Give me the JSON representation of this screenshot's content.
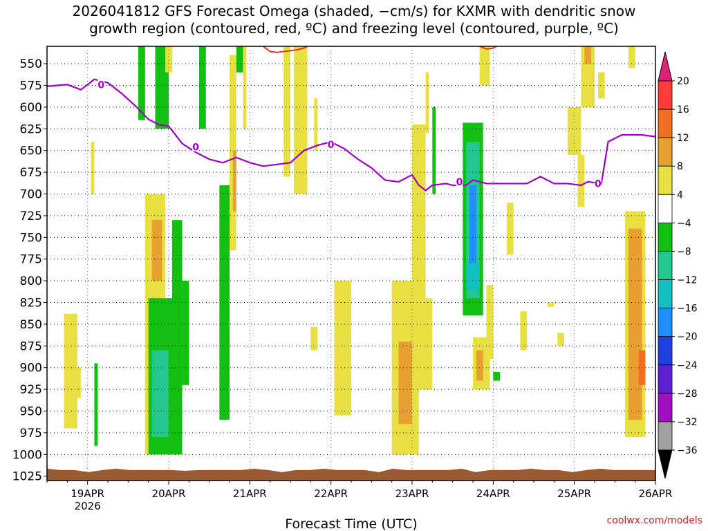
{
  "title_line1": "2026041812 GFS Forecast Omega (shaded, −cm/s) for KXMR with dendritic snow",
  "title_line2": "growth region (contoured, red, ºC) and freezing level (contoured, purple, ºC)",
  "credit": "coolwx.com/models",
  "chart_data": {
    "type": "heatmap",
    "xlabel": "Forecast Time (UTC)",
    "ylabel": "",
    "x_ticks": [
      {
        "label": "19APR",
        "sublabel": "2026",
        "hours": 12
      },
      {
        "label": "20APR",
        "sublabel": "",
        "hours": 36
      },
      {
        "label": "21APR",
        "sublabel": "",
        "hours": 60
      },
      {
        "label": "22APR",
        "sublabel": "",
        "hours": 84
      },
      {
        "label": "23APR",
        "sublabel": "",
        "hours": 108
      },
      {
        "label": "24APR",
        "sublabel": "",
        "hours": 132
      },
      {
        "label": "25APR",
        "sublabel": "",
        "hours": 156
      },
      {
        "label": "26APR",
        "sublabel": "",
        "hours": 180
      }
    ],
    "x_range_hours": [
      0,
      180
    ],
    "y_ticks": [
      550,
      575,
      600,
      625,
      650,
      675,
      700,
      725,
      750,
      775,
      800,
      825,
      850,
      875,
      900,
      925,
      950,
      975,
      1000,
      1025
    ],
    "y_range_hpa": [
      530,
      1030
    ],
    "grid": true,
    "colorbar": {
      "labels": [
        "20",
        "16",
        "12",
        "8",
        "4",
        "−4",
        "−8",
        "−12",
        "−16",
        "−20",
        "−24",
        "−28",
        "−32",
        "−36"
      ],
      "colors": [
        "#ff3b3b",
        "#f07020",
        "#e8a030",
        "#e8e040",
        "#ffffff",
        "#11c011",
        "#22c890",
        "#11c0c0",
        "#2090ff",
        "#2040e0",
        "#6020d0",
        "#a010c0",
        "#a0a0a0"
      ],
      "top_arrow_color": "#e0207a",
      "bottom_arrow_color": "#000000"
    },
    "freezing_level": {
      "label": "0",
      "color": "#a000c8",
      "points": [
        [
          0,
          576
        ],
        [
          6,
          574
        ],
        [
          10,
          580
        ],
        [
          14,
          568
        ],
        [
          18,
          572
        ],
        [
          22,
          584
        ],
        [
          26,
          598
        ],
        [
          30,
          614
        ],
        [
          33,
          620
        ],
        [
          36,
          622
        ],
        [
          38,
          632
        ],
        [
          40,
          642
        ],
        [
          44,
          652
        ],
        [
          48,
          660
        ],
        [
          52,
          664
        ],
        [
          56,
          658
        ],
        [
          60,
          664
        ],
        [
          64,
          668
        ],
        [
          68,
          666
        ],
        [
          72,
          664
        ],
        [
          76,
          650
        ],
        [
          80,
          644
        ],
        [
          84,
          640
        ],
        [
          88,
          648
        ],
        [
          92,
          660
        ],
        [
          96,
          670
        ],
        [
          100,
          684
        ],
        [
          104,
          686
        ],
        [
          108,
          678
        ],
        [
          110,
          690
        ],
        [
          112,
          696
        ],
        [
          114,
          690
        ],
        [
          118,
          688
        ],
        [
          120,
          690
        ],
        [
          124,
          690
        ],
        [
          126,
          684
        ],
        [
          130,
          688
        ],
        [
          134,
          688
        ],
        [
          138,
          688
        ],
        [
          142,
          688
        ],
        [
          146,
          680
        ],
        [
          150,
          688
        ],
        [
          154,
          688
        ],
        [
          158,
          690
        ],
        [
          160,
          686
        ],
        [
          164,
          688
        ],
        [
          166,
          640
        ],
        [
          170,
          632
        ],
        [
          176,
          632
        ],
        [
          180,
          634
        ]
      ],
      "label_positions": [
        [
          16,
          574
        ],
        [
          44,
          646
        ],
        [
          84,
          643
        ],
        [
          122,
          686
        ],
        [
          163,
          688
        ]
      ]
    },
    "dendritic_region": {
      "label": "",
      "color": "#e83030",
      "segments": [
        [
          [
            64,
            530
          ],
          [
            66,
            536
          ],
          [
            68,
            537
          ],
          [
            74,
            534
          ],
          [
            76,
            532
          ],
          [
            77,
            530
          ]
        ],
        [
          [
            128,
            530
          ],
          [
            130,
            533
          ],
          [
            132,
            532
          ],
          [
            133,
            530
          ]
        ]
      ]
    },
    "ground": {
      "color": "#9a5a32",
      "pressure_hpa": 1018
    },
    "shaded_regions": [
      {
        "t1": 5,
        "t2": 9,
        "p1": 838,
        "p2": 970,
        "color": "#e8e040"
      },
      {
        "t1": 9,
        "t2": 10,
        "p1": 900,
        "p2": 935,
        "color": "#e8e040"
      },
      {
        "t1": 13,
        "t2": 14,
        "p1": 640,
        "p2": 700,
        "color": "#e8e040"
      },
      {
        "t1": 14,
        "t2": 15,
        "p1": 895,
        "p2": 990,
        "color": "#11c011"
      },
      {
        "t1": 27,
        "t2": 29,
        "p1": 530,
        "p2": 615,
        "color": "#11c011"
      },
      {
        "t1": 29,
        "t2": 35,
        "p1": 700,
        "p2": 1000,
        "color": "#e8e040"
      },
      {
        "t1": 31,
        "t2": 34,
        "p1": 730,
        "p2": 800,
        "color": "#e8a030"
      },
      {
        "t1": 32,
        "t2": 36,
        "p1": 530,
        "p2": 625,
        "color": "#11c011"
      },
      {
        "t1": 35,
        "t2": 37,
        "p1": 530,
        "p2": 560,
        "color": "#e8e040"
      },
      {
        "t1": 30,
        "t2": 38,
        "p1": 820,
        "p2": 1000,
        "color": "#11c011"
      },
      {
        "t1": 31,
        "t2": 36,
        "p1": 880,
        "p2": 980,
        "color": "#22c890"
      },
      {
        "t1": 37,
        "t2": 40,
        "p1": 730,
        "p2": 1000,
        "color": "#11c011"
      },
      {
        "t1": 40,
        "t2": 42,
        "p1": 800,
        "p2": 920,
        "color": "#11c011"
      },
      {
        "t1": 45,
        "t2": 47,
        "p1": 530,
        "p2": 625,
        "color": "#11c011"
      },
      {
        "t1": 51,
        "t2": 54,
        "p1": 690,
        "p2": 960,
        "color": "#11c011"
      },
      {
        "t1": 54,
        "t2": 56,
        "p1": 540,
        "p2": 765,
        "color": "#e8e040"
      },
      {
        "t1": 55,
        "t2": 56,
        "p1": 650,
        "p2": 720,
        "color": "#e8a030"
      },
      {
        "t1": 56,
        "t2": 58,
        "p1": 530,
        "p2": 560,
        "color": "#11c011"
      },
      {
        "t1": 58,
        "t2": 59,
        "p1": 530,
        "p2": 625,
        "color": "#e8e040"
      },
      {
        "t1": 70,
        "t2": 72,
        "p1": 530,
        "p2": 680,
        "color": "#e8e040"
      },
      {
        "t1": 73,
        "t2": 77,
        "p1": 530,
        "p2": 700,
        "color": "#e8e040"
      },
      {
        "t1": 79,
        "t2": 80,
        "p1": 590,
        "p2": 650,
        "color": "#e8e040"
      },
      {
        "t1": 78,
        "t2": 80,
        "p1": 853,
        "p2": 880,
        "color": "#e8e040"
      },
      {
        "t1": 85,
        "t2": 90,
        "p1": 800,
        "p2": 955,
        "color": "#e8e040"
      },
      {
        "t1": 102,
        "t2": 110,
        "p1": 800,
        "p2": 1000,
        "color": "#e8e040"
      },
      {
        "t1": 104,
        "t2": 108,
        "p1": 870,
        "p2": 965,
        "color": "#e8a030"
      },
      {
        "t1": 108,
        "t2": 112,
        "p1": 620,
        "p2": 820,
        "color": "#e8e040"
      },
      {
        "t1": 110,
        "t2": 114,
        "p1": 820,
        "p2": 925,
        "color": "#e8e040"
      },
      {
        "t1": 112,
        "t2": 113,
        "p1": 560,
        "p2": 630,
        "color": "#e8e040"
      },
      {
        "t1": 114,
        "t2": 115,
        "p1": 600,
        "p2": 700,
        "color": "#11c011"
      },
      {
        "t1": 123,
        "t2": 129,
        "p1": 618,
        "p2": 840,
        "color": "#11c011"
      },
      {
        "t1": 124,
        "t2": 128,
        "p1": 640,
        "p2": 820,
        "color": "#22c890"
      },
      {
        "t1": 125,
        "t2": 127,
        "p1": 690,
        "p2": 790,
        "color": "#2090ff"
      },
      {
        "t1": 124,
        "t2": 128,
        "p1": 780,
        "p2": 810,
        "color": "#11c0c0"
      },
      {
        "t1": 128,
        "t2": 131,
        "p1": 530,
        "p2": 575,
        "color": "#e8e040"
      },
      {
        "t1": 126,
        "t2": 131,
        "p1": 865,
        "p2": 925,
        "color": "#e8e040"
      },
      {
        "t1": 127,
        "t2": 129,
        "p1": 880,
        "p2": 915,
        "color": "#e8a030"
      },
      {
        "t1": 130,
        "t2": 132,
        "p1": 805,
        "p2": 890,
        "color": "#e8e040"
      },
      {
        "t1": 132,
        "t2": 134,
        "p1": 905,
        "p2": 915,
        "color": "#11c011"
      },
      {
        "t1": 136,
        "t2": 138,
        "p1": 710,
        "p2": 770,
        "color": "#e8e040"
      },
      {
        "t1": 140,
        "t2": 142,
        "p1": 835,
        "p2": 880,
        "color": "#e8e040"
      },
      {
        "t1": 148,
        "t2": 150,
        "p1": 825,
        "p2": 830,
        "color": "#e8e040"
      },
      {
        "t1": 151,
        "t2": 153,
        "p1": 860,
        "p2": 875,
        "color": "#e8e040"
      },
      {
        "t1": 154,
        "t2": 158,
        "p1": 600,
        "p2": 655,
        "color": "#e8e040"
      },
      {
        "t1": 158,
        "t2": 162,
        "p1": 530,
        "p2": 600,
        "color": "#e8e040"
      },
      {
        "t1": 159,
        "t2": 161,
        "p1": 530,
        "p2": 550,
        "color": "#e8a030"
      },
      {
        "t1": 157,
        "t2": 159,
        "p1": 655,
        "p2": 715,
        "color": "#e8e040"
      },
      {
        "t1": 163,
        "t2": 165,
        "p1": 560,
        "p2": 590,
        "color": "#e8e040"
      },
      {
        "t1": 172,
        "t2": 174,
        "p1": 530,
        "p2": 555,
        "color": "#e8e040"
      },
      {
        "t1": 171,
        "t2": 177,
        "p1": 720,
        "p2": 980,
        "color": "#e8e040"
      },
      {
        "t1": 172,
        "t2": 176,
        "p1": 740,
        "p2": 960,
        "color": "#e8a030"
      },
      {
        "t1": 175,
        "t2": 177,
        "p1": 880,
        "p2": 920,
        "color": "#f07020"
      }
    ]
  }
}
